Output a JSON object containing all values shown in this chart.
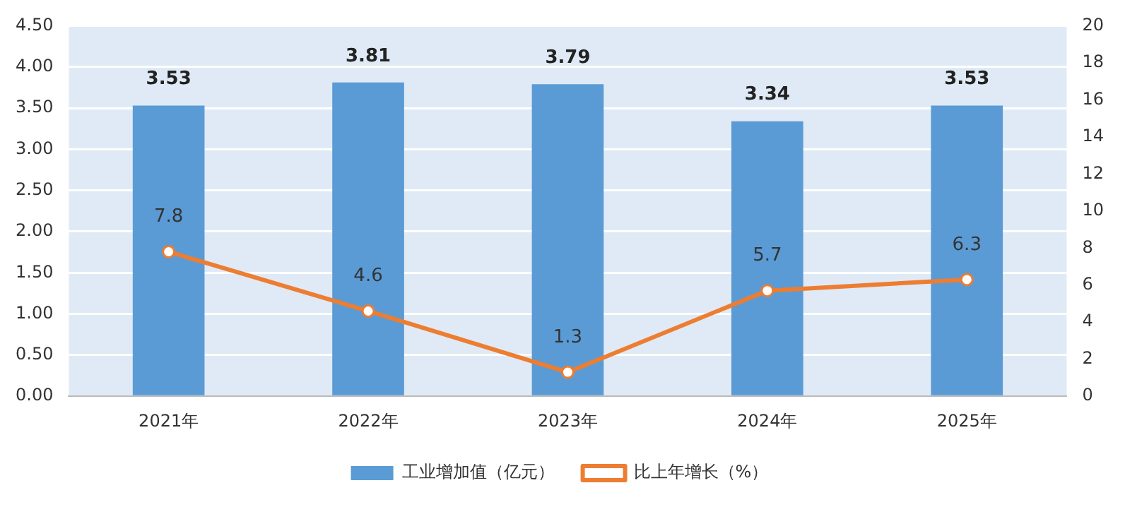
{
  "chart_data": {
    "type": "bar",
    "categories": [
      "2021年",
      "2022年",
      "2023年",
      "2024年",
      "2025年"
    ],
    "series": [
      {
        "name": "工业增加值（亿元）",
        "color": "#5b9bd5",
        "values": [
          3.53,
          3.81,
          3.79,
          3.34,
          3.53
        ]
      },
      {
        "name": "比上年增长（%）",
        "type": "line",
        "axis": "y2",
        "color": "#ed7d31",
        "values": [
          7.8,
          4.6,
          1.3,
          5.7,
          6.3
        ],
        "marker": "circle"
      }
    ],
    "ylim": [
      0,
      4.5
    ],
    "yticks": [
      {
        "value": 0,
        "label": "0.00"
      },
      {
        "value": 0.5,
        "label": "0.50"
      },
      {
        "value": 1,
        "label": "1.00"
      },
      {
        "value": 1.5,
        "label": "1.50"
      },
      {
        "value": 2,
        "label": "2.00"
      },
      {
        "value": 2.5,
        "label": "2.50"
      },
      {
        "value": 3,
        "label": "3.00"
      },
      {
        "value": 3.5,
        "label": "3.50"
      },
      {
        "value": 4,
        "label": "4.00"
      },
      {
        "value": 4.5,
        "label": "4.50"
      }
    ],
    "y2lim": [
      0,
      20
    ],
    "y2ticks": [
      0,
      2,
      4,
      6,
      8,
      10,
      12,
      14,
      16,
      18,
      20
    ],
    "grid": "y",
    "legend": "bottom",
    "data_labels": true
  }
}
